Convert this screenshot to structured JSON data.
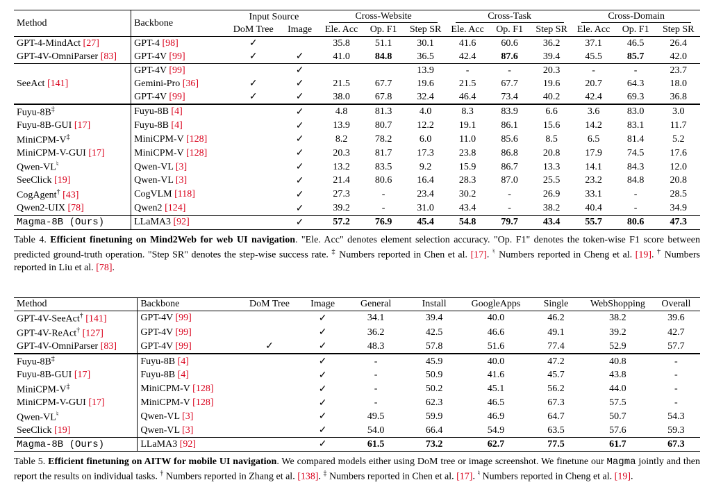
{
  "check": "✓",
  "table4": {
    "headers": {
      "method": "Method",
      "backbone": "Backbone",
      "input_source": "Input Source",
      "dom": "DoM Tree",
      "image": "Image",
      "cw": "Cross-Website",
      "ct": "Cross-Task",
      "cd": "Cross-Domain",
      "ele": "Ele. Acc",
      "op": "Op. F1",
      "sr": "Step SR"
    },
    "group1": [
      {
        "m": "GPT-4-MindAct ",
        "mc": "[27]",
        "b": "GPT-4 ",
        "bc": "[98]",
        "d": "✓",
        "i": "",
        "cw": [
          "35.8",
          "51.1",
          "30.1"
        ],
        "ct": [
          "41.6",
          "60.6",
          "36.2"
        ],
        "cd": [
          "37.1",
          "46.5",
          "26.4"
        ]
      },
      {
        "m": "GPT-4V-OmniParser ",
        "mc": "[83]",
        "b": "GPT-4V ",
        "bc": "[99]",
        "d": "✓",
        "i": "✓",
        "cw": [
          "41.0",
          "84.8",
          "36.5"
        ],
        "ct": [
          "42.4",
          "87.6",
          "39.4"
        ],
        "cd": [
          "45.5",
          "85.7",
          "42.0"
        ],
        "bold": [
          4,
          7,
          10
        ]
      }
    ],
    "group2": [
      {
        "m": "",
        "mc": "",
        "b": "GPT-4V ",
        "bc": "[99]",
        "d": "",
        "i": "✓",
        "cw": [
          "",
          "",
          "13.9"
        ],
        "ct": [
          "-",
          "-",
          "20.3"
        ],
        "cd": [
          "-",
          "-",
          "23.7"
        ]
      },
      {
        "m": "SeeAct ",
        "mc": "[141]",
        "b": "Gemini-Pro ",
        "bc": "[36]",
        "d": "✓",
        "i": "✓",
        "cw": [
          "21.5",
          "67.7",
          "19.6"
        ],
        "ct": [
          "21.5",
          "67.7",
          "19.6"
        ],
        "cd": [
          "20.7",
          "64.3",
          "18.0"
        ]
      },
      {
        "m": "",
        "mc": "",
        "b": "GPT-4V ",
        "bc": "[99]",
        "d": "✓",
        "i": "✓",
        "cw": [
          "38.0",
          "67.8",
          "32.4"
        ],
        "ct": [
          "46.4",
          "73.4",
          "40.2"
        ],
        "cd": [
          "42.4",
          "69.3",
          "36.8"
        ]
      }
    ],
    "group3": [
      {
        "m": "Fuyu-8B",
        "sup": "‡",
        "mc": "",
        "b": "Fuyu-8B ",
        "bc": "[4]",
        "d": "",
        "i": "✓",
        "cw": [
          "4.8",
          "81.3",
          "4.0"
        ],
        "ct": [
          "8.3",
          "83.9",
          "6.6"
        ],
        "cd": [
          "3.6",
          "83.0",
          "3.0"
        ]
      },
      {
        "m": "Fuyu-8B-GUI ",
        "mc": "[17]",
        "b": "Fuyu-8B ",
        "bc": "[4]",
        "d": "",
        "i": "✓",
        "cw": [
          "13.9",
          "80.7",
          "12.2"
        ],
        "ct": [
          "19.1",
          "86.1",
          "15.6"
        ],
        "cd": [
          "14.2",
          "83.1",
          "11.7"
        ]
      },
      {
        "m": "MiniCPM-V",
        "sup": "‡",
        "mc": "",
        "b": "MiniCPM-V ",
        "bc": "[128]",
        "d": "",
        "i": "✓",
        "cw": [
          "8.2",
          "78.2",
          "6.0"
        ],
        "ct": [
          "11.0",
          "85.6",
          "8.5"
        ],
        "cd": [
          "6.5",
          "81.4",
          "5.2"
        ]
      },
      {
        "m": "MiniCPM-V-GUI ",
        "mc": "[17]",
        "b": "MiniCPM-V ",
        "bc": "[128]",
        "d": "",
        "i": "✓",
        "cw": [
          "20.3",
          "81.7",
          "17.3"
        ],
        "ct": [
          "23.8",
          "86.8",
          "20.8"
        ],
        "cd": [
          "17.9",
          "74.5",
          "17.6"
        ]
      },
      {
        "m": "Qwen-VL",
        "sup": "♮",
        "mc": "",
        "b": "Qwen-VL ",
        "bc": "[3]",
        "d": "",
        "i": "✓",
        "cw": [
          "13.2",
          "83.5",
          "9.2"
        ],
        "ct": [
          "15.9",
          "86.7",
          "13.3"
        ],
        "cd": [
          "14.1",
          "84.3",
          "12.0"
        ]
      },
      {
        "m": "SeeClick ",
        "mc": "[19]",
        "b": "Qwen-VL ",
        "bc": "[3]",
        "d": "",
        "i": "✓",
        "cw": [
          "21.4",
          "80.6",
          "16.4"
        ],
        "ct": [
          "28.3",
          "87.0",
          "25.5"
        ],
        "cd": [
          "23.2",
          "84.8",
          "20.8"
        ]
      },
      {
        "m": "CogAgent",
        "sup": "†",
        "mc": "[43]",
        "b": "CogVLM ",
        "bc": "[118]",
        "d": "",
        "i": "✓",
        "cw": [
          "27.3",
          "-",
          "23.4"
        ],
        "ct": [
          "30.2",
          "-",
          "26.9"
        ],
        "cd": [
          "33.1",
          "-",
          "28.5"
        ]
      },
      {
        "m": "Qwen2-UIX ",
        "mc": "[78]",
        "b": "Qwen2 ",
        "bc": "[124]",
        "d": "",
        "i": "✓",
        "cw": [
          "39.2",
          "-",
          "31.0"
        ],
        "ct": [
          "43.4",
          "-",
          "38.2"
        ],
        "cd": [
          "40.4",
          "-",
          "34.9"
        ]
      }
    ],
    "ours": {
      "m": "Magma-8B (Ours)",
      "b": "LLaMA3 ",
      "bc": "[92]",
      "d": "",
      "i": "✓",
      "cw": [
        "57.2",
        "76.9",
        "45.4"
      ],
      "ct": [
        "54.8",
        "79.7",
        "43.4"
      ],
      "cd": [
        "55.7",
        "80.6",
        "47.3"
      ]
    },
    "caption_prefix": "Table 4. ",
    "caption_title": "Efficient finetuning on Mind2Web for web UI navigation",
    "caption_body1": ". \"Ele. Acc\" denotes element selection accuracy. \"Op. F1\" denotes the token-wise F1 score between predicted ground-truth operation. \"Step SR\" denotes the step-wise success rate. ",
    "caption_sup1": "‡",
    "caption_part2": " Numbers reported in Chen et al. ",
    "caption_cite2": "[17]",
    "caption_sup2": "♮",
    "caption_part3": " Numbers reported in Cheng et al. ",
    "caption_cite3": "[19]",
    "caption_sup3": "†",
    "caption_part4": " Numbers reported in Liu et al. ",
    "caption_cite4": "[78]",
    "caption_end": "."
  },
  "table5": {
    "headers": {
      "method": "Method",
      "backbone": "Backbone",
      "dom": "DoM Tree",
      "image": "Image",
      "general": "General",
      "install": "Install",
      "gapps": "GoogleApps",
      "single": "Single",
      "web": "WebShopping",
      "overall": "Overall"
    },
    "group1": [
      {
        "m": "GPT-4V-SeeAct",
        "sup": "†",
        "mc": "[141]",
        "b": "GPT-4V ",
        "bc": "[99]",
        "d": "",
        "i": "✓",
        "vals": [
          "34.1",
          "39.4",
          "40.0",
          "46.2",
          "38.2",
          "39.6"
        ]
      },
      {
        "m": "GPT-4V-ReAct",
        "sup": "†",
        "mc": "[127]",
        "b": "GPT-4V ",
        "bc": "[99]",
        "d": "",
        "i": "✓",
        "vals": [
          "36.2",
          "42.5",
          "46.6",
          "49.1",
          "39.2",
          "42.7"
        ]
      },
      {
        "m": "GPT-4V-OmniParser ",
        "mc": "[83]",
        "b": "GPT-4V ",
        "bc": "[99]",
        "d": "✓",
        "i": "✓",
        "vals": [
          "48.3",
          "57.8",
          "51.6",
          "77.4",
          "52.9",
          "57.7"
        ]
      }
    ],
    "group2": [
      {
        "m": "Fuyu-8B",
        "sup": "‡",
        "mc": "",
        "b": "Fuyu-8B ",
        "bc": "[4]",
        "d": "",
        "i": "✓",
        "vals": [
          "-",
          "45.9",
          "40.0",
          "47.2",
          "40.8",
          "-"
        ]
      },
      {
        "m": "Fuyu-8B-GUI ",
        "mc": "[17]",
        "b": "Fuyu-8B ",
        "bc": "[4]",
        "d": "",
        "i": "✓",
        "vals": [
          "-",
          "50.9",
          "41.6",
          "45.7",
          "43.8",
          "-"
        ]
      },
      {
        "m": "MiniCPM-V",
        "sup": "‡",
        "mc": "",
        "b": "MiniCPM-V ",
        "bc": "[128]",
        "d": "",
        "i": "✓",
        "vals": [
          "-",
          "50.2",
          "45.1",
          "56.2",
          "44.0",
          "-"
        ]
      },
      {
        "m": "MiniCPM-V-GUI ",
        "mc": "[17]",
        "b": "MiniCPM-V ",
        "bc": "[128]",
        "d": "",
        "i": "✓",
        "vals": [
          "-",
          "62.3",
          "46.5",
          "67.3",
          "57.5",
          "-"
        ]
      },
      {
        "m": "Qwen-VL",
        "sup": "♮",
        "mc": "",
        "b": "Qwen-VL ",
        "bc": "[3]",
        "d": "",
        "i": "✓",
        "vals": [
          "49.5",
          "59.9",
          "46.9",
          "64.7",
          "50.7",
          "54.3"
        ]
      },
      {
        "m": "SeeClick ",
        "mc": "[19]",
        "b": "Qwen-VL ",
        "bc": "[3]",
        "d": "",
        "i": "✓",
        "vals": [
          "54.0",
          "66.4",
          "54.9",
          "63.5",
          "57.6",
          "59.3"
        ]
      }
    ],
    "ours": {
      "m": "Magma-8B (Ours)",
      "b": "LLaMA3 ",
      "bc": "[92]",
      "d": "",
      "i": "✓",
      "vals": [
        "61.5",
        "73.2",
        "62.7",
        "77.5",
        "61.7",
        "67.3"
      ]
    },
    "caption_prefix": "Table 5. ",
    "caption_title": "Efficient finetuning on AITW for mobile UI navigation",
    "caption_body1": ". We compared models either using DoM tree or image screenshot. We finetune our ",
    "caption_magma": "Magma",
    "caption_body2": " jointly and then report the results on individual tasks. ",
    "caption_sup1": "†",
    "caption_part2": " Numbers reported in Zhang et al. ",
    "caption_cite2": "[138]",
    "caption_sup2": "‡",
    "caption_part3": " Numbers reported in Chen et al. ",
    "caption_cite3": "[17]",
    "caption_sup3": "♮",
    "caption_part4": " Numbers reported in Cheng et al. ",
    "caption_cite4": "[19]",
    "caption_end": "."
  }
}
